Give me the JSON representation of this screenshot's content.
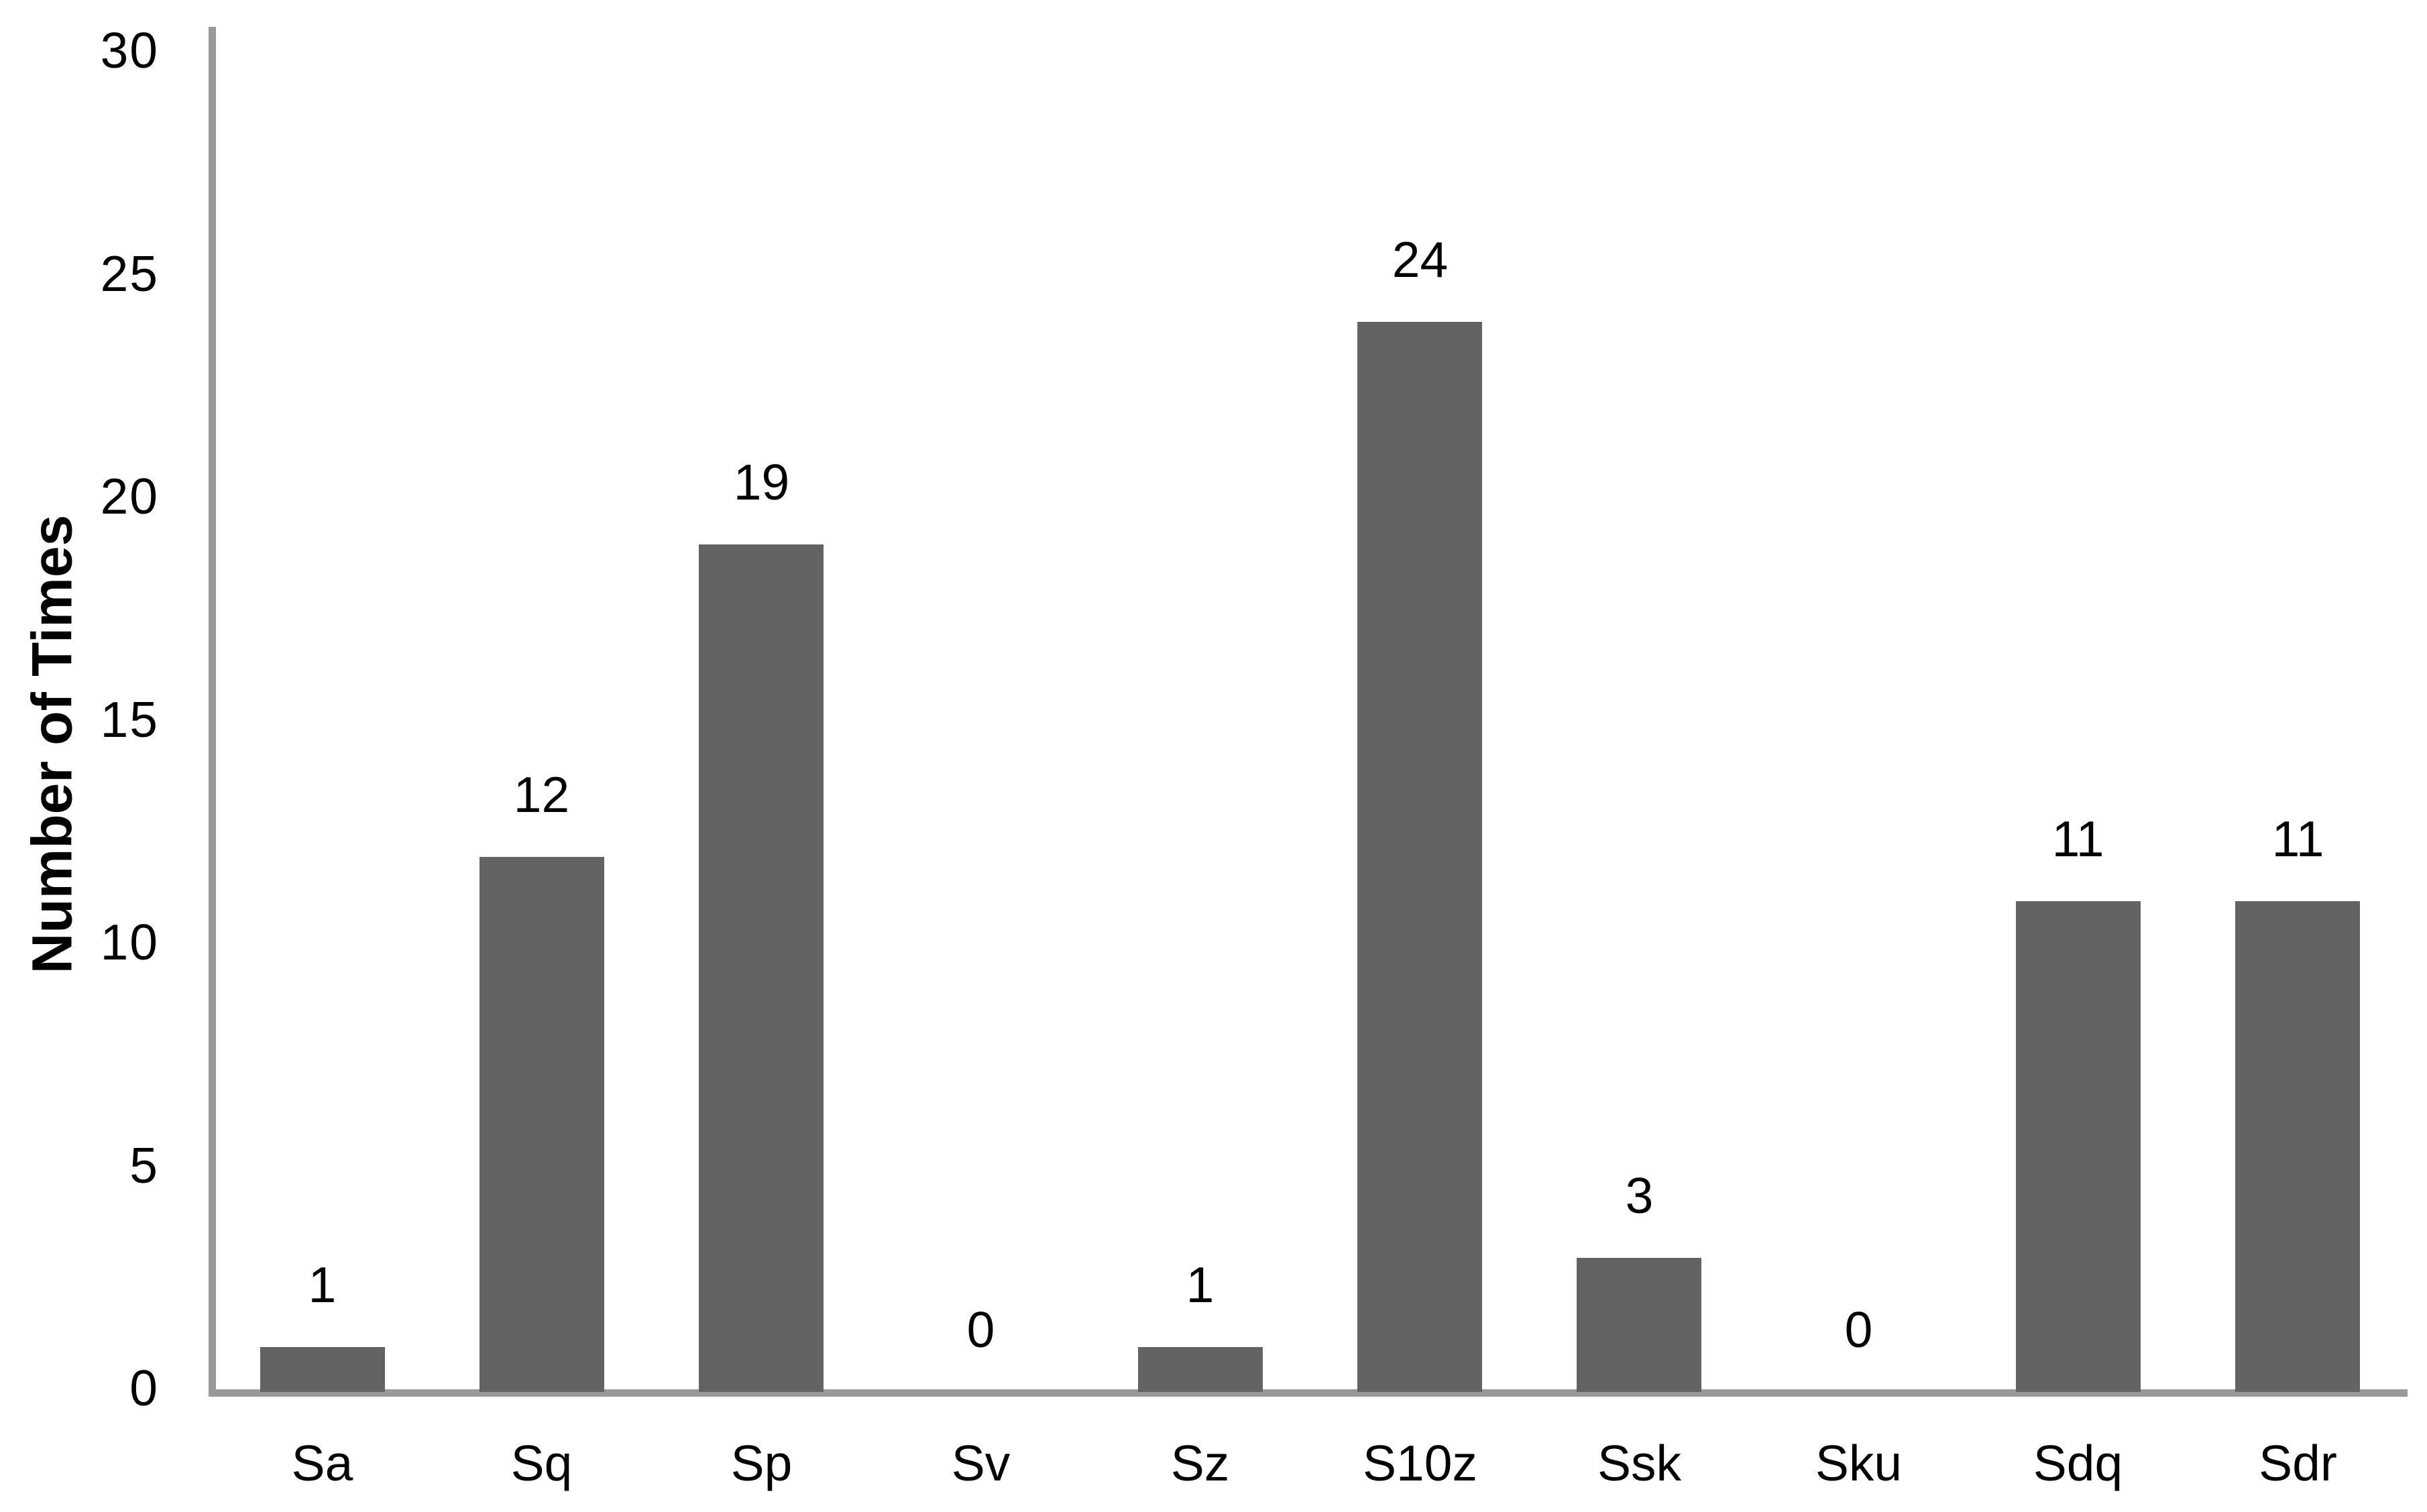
{
  "chart_data": {
    "type": "bar",
    "title": "",
    "xlabel": "",
    "ylabel": "Number of Times",
    "categories": [
      "Sa",
      "Sq",
      "Sp",
      "Sv",
      "Sz",
      "S10z",
      "Ssk",
      "Sku",
      "Sdq",
      "Sdr"
    ],
    "values": [
      1,
      12,
      19,
      0,
      1,
      24,
      3,
      0,
      11,
      11
    ],
    "data_labels": [
      "1",
      "12",
      "19",
      "0",
      "1",
      "24",
      "3",
      "0",
      "11",
      "11"
    ],
    "yticks": [
      0,
      5,
      10,
      15,
      20,
      25,
      30
    ],
    "ylim": [
      0,
      30
    ],
    "grid": false,
    "legend": false,
    "bar_color": "#636363",
    "axis_color": "#999999",
    "text_color": "#000000",
    "background_color": "#ffffff"
  }
}
